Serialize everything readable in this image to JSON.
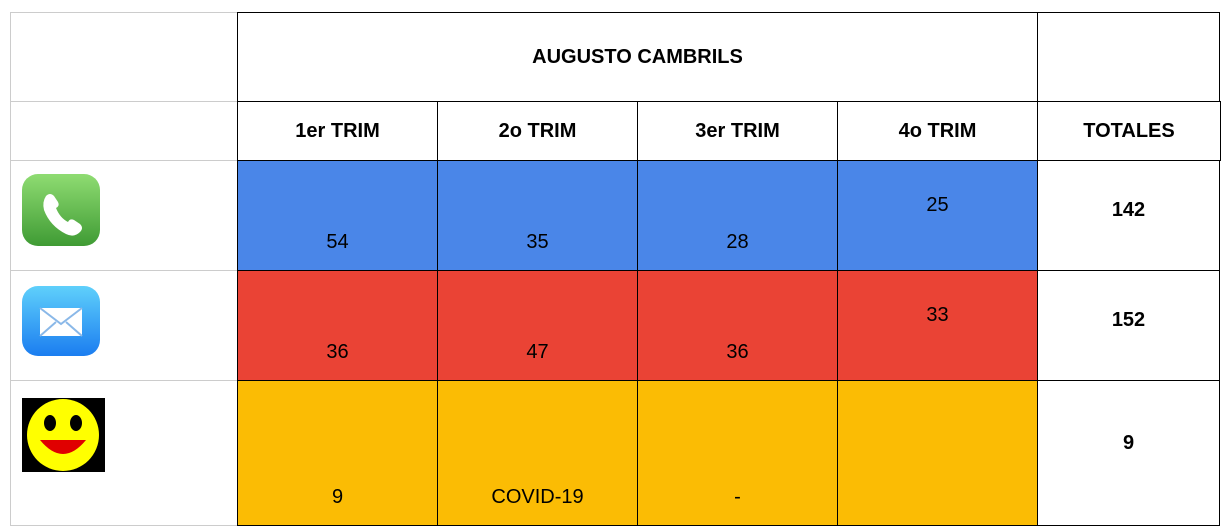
{
  "header": {
    "title": "AUGUSTO CAMBRILS"
  },
  "table": {
    "columns": [
      "1er TRIM",
      "2o TRIM",
      "3er TRIM",
      "4o TRIM",
      "TOTALES"
    ],
    "rows": [
      {
        "values": [
          54,
          35,
          28,
          25
        ],
        "total": 142
      },
      {
        "values": [
          36,
          47,
          36,
          33
        ],
        "total": 152
      },
      {
        "values": [
          9,
          "COVID-19",
          "-"
        ],
        "total": 9
      }
    ]
  }
}
